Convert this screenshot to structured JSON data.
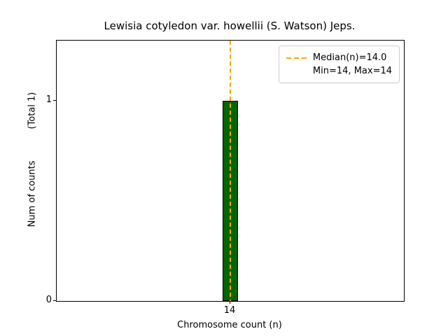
{
  "chart_data": {
    "type": "bar",
    "title": "Lewisia cotyledon var. howellii (S. Watson) Jeps.",
    "xlabel": "Chromosome count (n)",
    "ylabel": "Num of counts",
    "ylabel_secondary": "(Total 1)",
    "categories": [
      "14"
    ],
    "values": [
      1
    ],
    "total_counts": 1,
    "ylim": [
      0,
      1.3
    ],
    "yticks": [
      0,
      1
    ],
    "xticks": [
      "14"
    ],
    "bar_color": "#006400",
    "bar_edge_color": "#000000",
    "median_line": {
      "value": 14.0,
      "color": "#FFA500",
      "style": "dashed"
    },
    "legend": {
      "position": "upper right",
      "entries": [
        "Median(n)=14.0",
        "Min=14, Max=14"
      ]
    },
    "grid": false
  }
}
